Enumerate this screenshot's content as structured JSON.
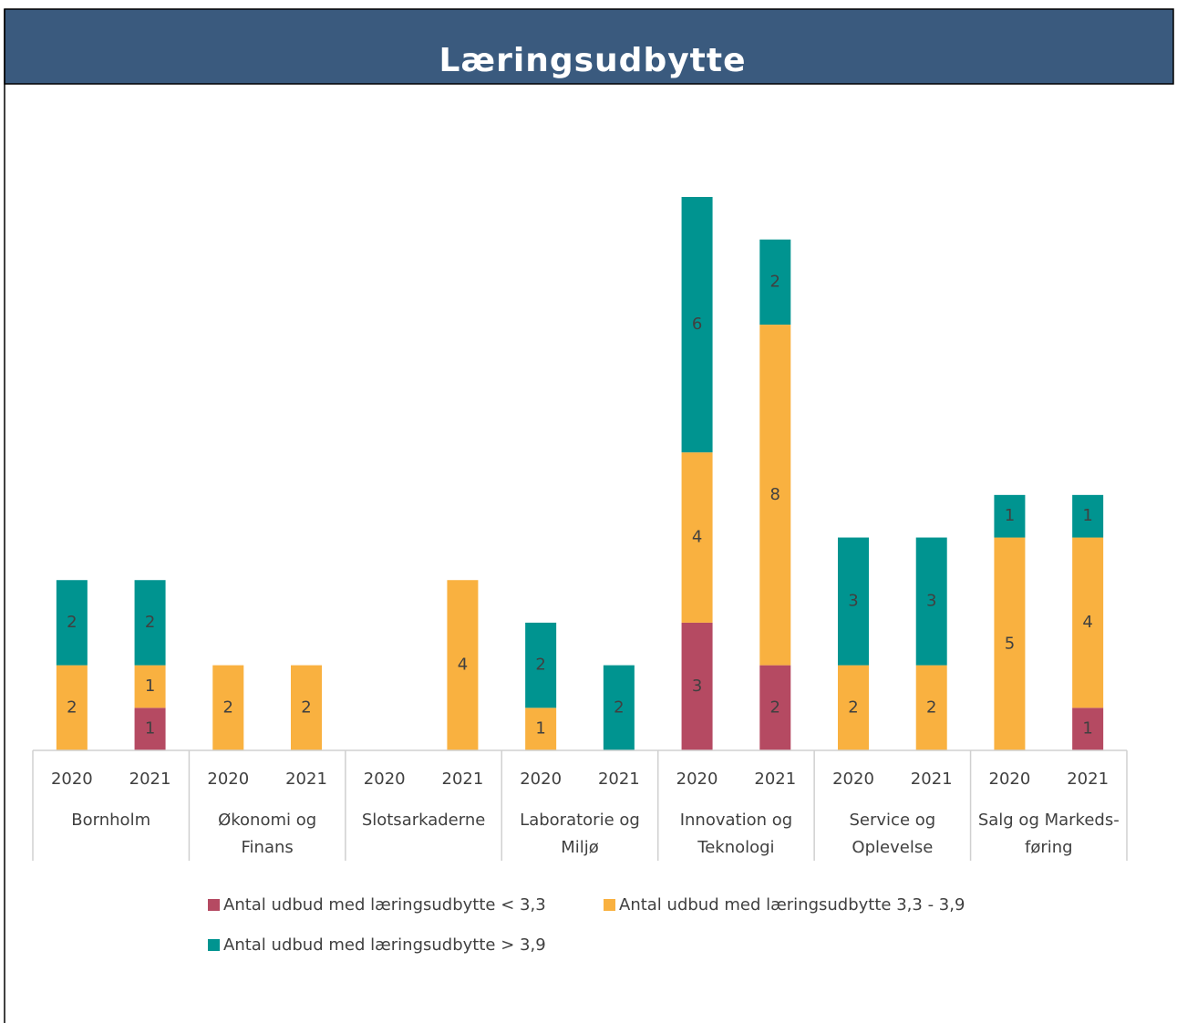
{
  "chart_data": {
    "type": "stacked_bar",
    "title": "Læringsudbytte",
    "categories": [
      "2020",
      "2021",
      "2020",
      "2021",
      "2020",
      "2021",
      "2020",
      "2021",
      "2020",
      "2021",
      "2020",
      "2021",
      "2020",
      "2021"
    ],
    "groups": [
      [
        "Bornholm"
      ],
      [
        "Økonomi og",
        "Finans"
      ],
      [
        "Slotsarkaderne"
      ],
      [
        "Laboratorie og",
        "Miljø"
      ],
      [
        "Innovation og",
        "Teknologi"
      ],
      [
        "Service og",
        "Oplevelse"
      ],
      [
        "Salg og Markeds-",
        "føring"
      ]
    ],
    "series": [
      {
        "name": "Antal udbud med læringsudbytte < 3,3",
        "color": "#b54a62",
        "values": [
          null,
          1,
          null,
          null,
          null,
          null,
          null,
          null,
          3,
          2,
          null,
          null,
          null,
          1
        ]
      },
      {
        "name": "Antal udbud med læringsudbytte 3,3 - 3,9",
        "color": "#f9b140",
        "values": [
          2,
          1,
          2,
          2,
          null,
          4,
          1,
          null,
          4,
          8,
          2,
          2,
          5,
          4
        ]
      },
      {
        "name": "Antal udbud med læringsudbytte > 3,9",
        "color": "#009490",
        "values": [
          2,
          2,
          null,
          null,
          null,
          null,
          2,
          2,
          6,
          2,
          3,
          3,
          1,
          1
        ]
      }
    ]
  }
}
